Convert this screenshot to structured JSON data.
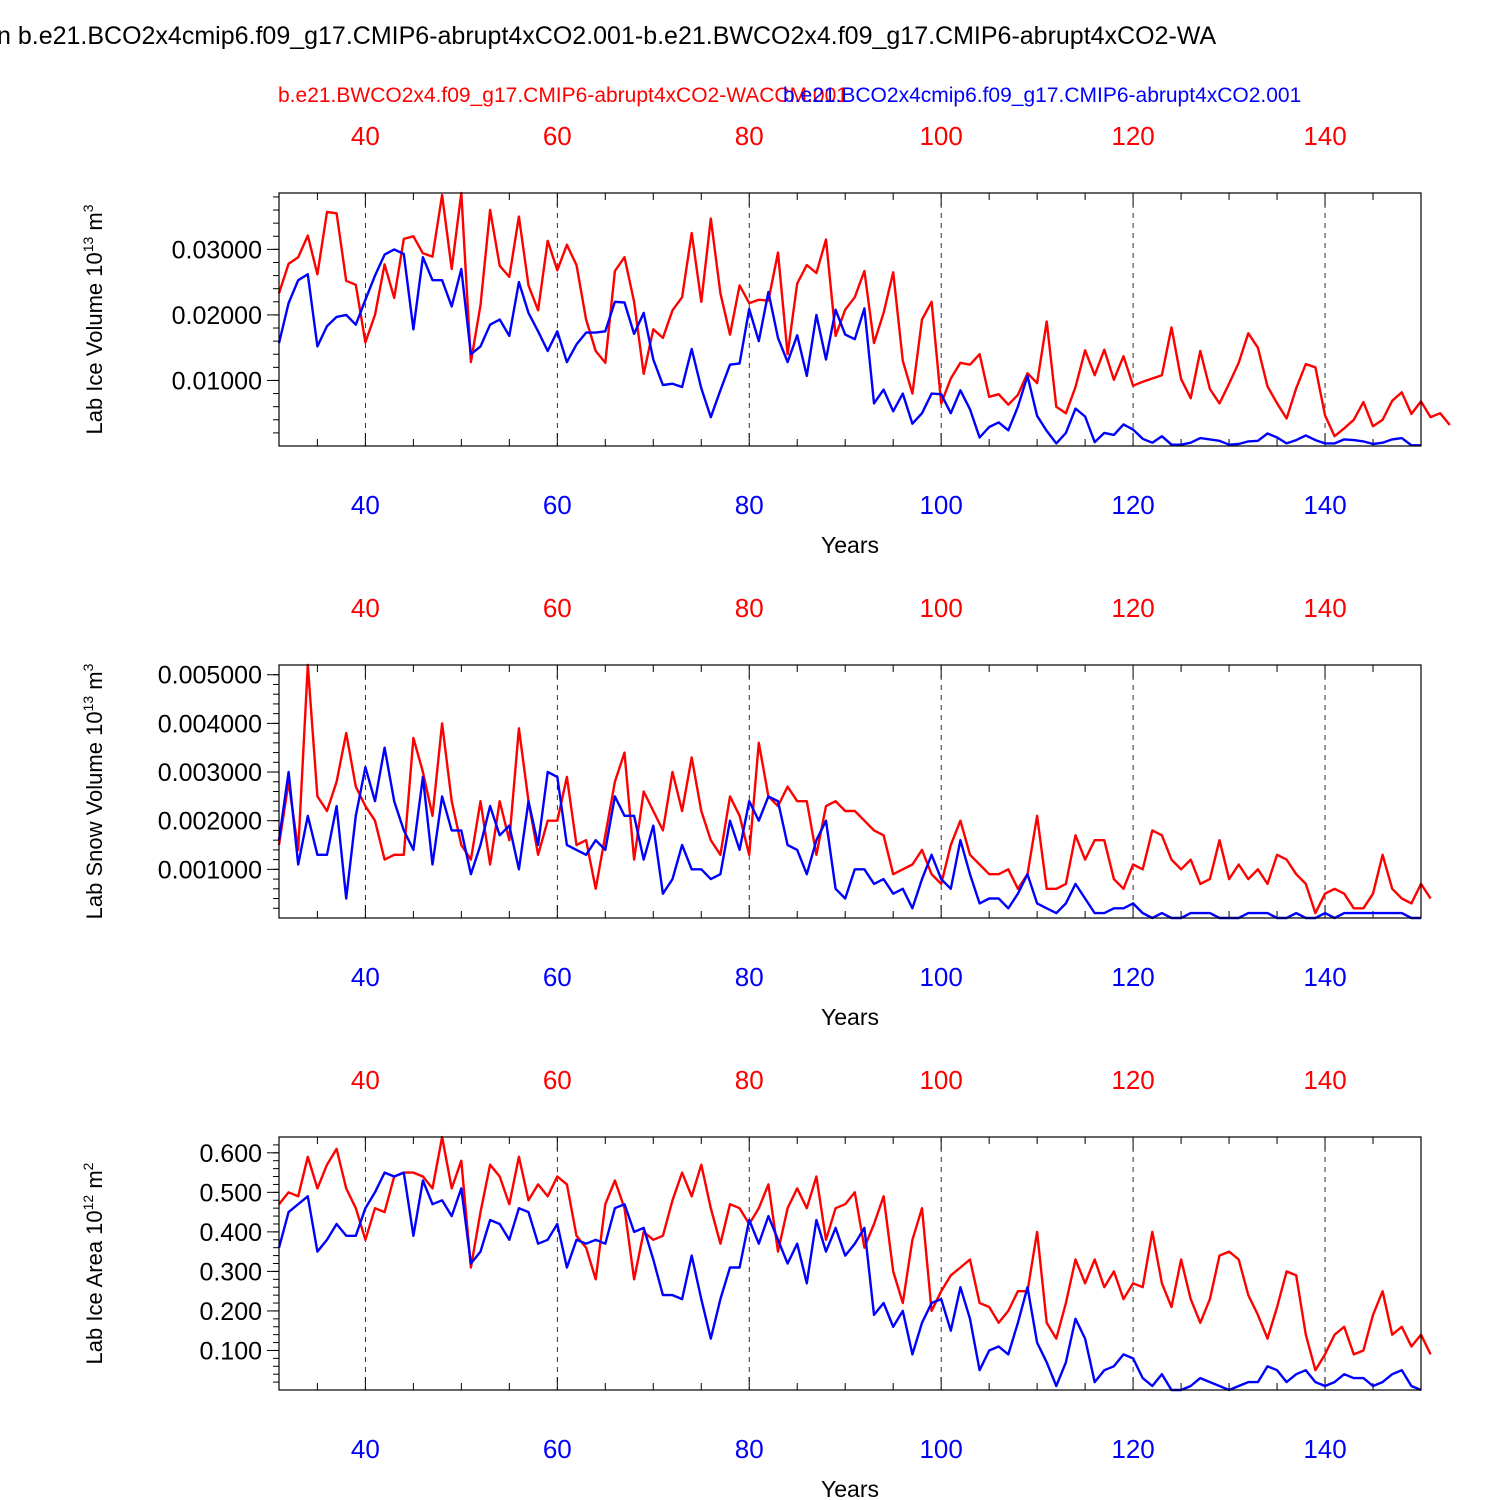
{
  "page_title": "n b.e21.BCO2x4cmip6.f09_g17.CMIP6-abrupt4xCO2.001-b.e21.BWCO2x4.f09_g17.CMIP6-abrupt4xCO2-WA",
  "legend": {
    "red_label": "b.e21.BWCO2x4.f09_g17.CMIP6-abrupt4xCO2-WACCM.001",
    "blue_label": "b.e21.BCO2x4cmip6.f09_g17.CMIP6-abrupt4xCO2.001"
  },
  "colors": {
    "red": "#ff0000",
    "blue": "#0000ff",
    "axis": "#000000"
  },
  "chart_data": [
    {
      "type": "line",
      "title": "",
      "ylabel": "Lab Ice Volume",
      "ylabel_unit": "10",
      "ylabel_exp": "13",
      "ylabel_unit_tail": " m",
      "ylabel_unit_exp": "3",
      "xlabel": "Years",
      "xlim": [
        31,
        150
      ],
      "ylim": [
        0,
        0.0386
      ],
      "yticks": [
        0.01,
        0.02,
        0.03
      ],
      "ytick_labels": [
        "0.01000",
        "0.02000",
        "0.03000"
      ],
      "ymin_step": 0.002,
      "xticks": [
        40,
        60,
        80,
        100,
        120,
        140
      ],
      "xtick_labels": [
        "40",
        "60",
        "80",
        "100",
        "120",
        "140"
      ],
      "x_start": 31,
      "series": [
        {
          "name": "b.e21.BWCO2x4.f09_g17.CMIP6-abrupt4xCO2-WACCM.001",
          "color": "red",
          "values": [
            0.0233,
            0.0278,
            0.0288,
            0.0321,
            0.0262,
            0.0357,
            0.0355,
            0.0252,
            0.0246,
            0.0158,
            0.02,
            0.0277,
            0.0226,
            0.0316,
            0.032,
            0.0294,
            0.0289,
            0.0383,
            0.027,
            0.0386,
            0.0128,
            0.0215,
            0.036,
            0.0275,
            0.0258,
            0.035,
            0.0245,
            0.0207,
            0.0313,
            0.0268,
            0.0307,
            0.0276,
            0.0193,
            0.0145,
            0.0127,
            0.0267,
            0.0288,
            0.022,
            0.011,
            0.0178,
            0.0165,
            0.0207,
            0.0227,
            0.0325,
            0.022,
            0.0347,
            0.0233,
            0.017,
            0.0245,
            0.0218,
            0.0223,
            0.0222,
            0.0295,
            0.014,
            0.0248,
            0.0276,
            0.0264,
            0.0315,
            0.0168,
            0.0208,
            0.0227,
            0.0267,
            0.0157,
            0.0203,
            0.0265,
            0.013,
            0.008,
            0.0193,
            0.022,
            0.0065,
            0.0103,
            0.0127,
            0.0124,
            0.014,
            0.0075,
            0.0079,
            0.0063,
            0.0078,
            0.0111,
            0.0096,
            0.019,
            0.006,
            0.005,
            0.009,
            0.0146,
            0.0108,
            0.0147,
            0.0101,
            0.0137,
            0.0092,
            0.0098,
            0.0103,
            0.0108,
            0.0181,
            0.0102,
            0.0073,
            0.0145,
            0.0087,
            0.0065,
            0.0095,
            0.0127,
            0.0172,
            0.015,
            0.0091,
            0.0065,
            0.0042,
            0.0088,
            0.0125,
            0.012,
            0.0047,
            0.0015,
            0.0027,
            0.004,
            0.0067,
            0.003,
            0.004,
            0.0069,
            0.0082,
            0.0049,
            0.0068,
            0.0044,
            0.005,
            0.0032
          ]
        },
        {
          "name": "b.e21.BCO2x4cmip6.f09_g17.CMIP6-abrupt4xCO2.001",
          "color": "blue",
          "values": [
            0.0157,
            0.0218,
            0.0253,
            0.0262,
            0.0152,
            0.0183,
            0.0197,
            0.02,
            0.0185,
            0.0223,
            0.026,
            0.0292,
            0.03,
            0.0293,
            0.0178,
            0.0288,
            0.0253,
            0.0253,
            0.0213,
            0.027,
            0.014,
            0.0152,
            0.0185,
            0.0193,
            0.0168,
            0.025,
            0.0203,
            0.0175,
            0.0145,
            0.0175,
            0.0128,
            0.0155,
            0.0173,
            0.0173,
            0.0175,
            0.022,
            0.0219,
            0.0171,
            0.0203,
            0.0132,
            0.0093,
            0.0095,
            0.009,
            0.0148,
            0.0088,
            0.0044,
            0.0085,
            0.0124,
            0.0126,
            0.0209,
            0.016,
            0.0235,
            0.0165,
            0.0128,
            0.0169,
            0.0107,
            0.02,
            0.0132,
            0.0208,
            0.017,
            0.0163,
            0.021,
            0.0065,
            0.0086,
            0.0053,
            0.008,
            0.0034,
            0.005,
            0.008,
            0.0079,
            0.005,
            0.0085,
            0.0056,
            0.0013,
            0.0029,
            0.0036,
            0.0024,
            0.006,
            0.0107,
            0.0046,
            0.0023,
            0.0004,
            0.002,
            0.0057,
            0.0045,
            0.0006,
            0.002,
            0.0017,
            0.0033,
            0.0025,
            0.0011,
            0.0005,
            0.0015,
            0.0002,
            0.0002,
            0.0005,
            0.0012,
            0.001,
            0.0008,
            0.0002,
            0.0003,
            0.0007,
            0.0008,
            0.0019,
            0.0013,
            0.0004,
            0.0009,
            0.0016,
            0.0009,
            0.0004,
            0.0004,
            0.001,
            0.0009,
            0.0007,
            0.0003,
            0.0005,
            0.001,
            0.0012,
            0.0001,
            0.0001
          ]
        }
      ]
    },
    {
      "type": "line",
      "title": "",
      "ylabel": "Lab Snow Volume",
      "ylabel_unit": "10",
      "ylabel_exp": "13",
      "ylabel_unit_tail": " m",
      "ylabel_unit_exp": "3",
      "xlabel": "Years",
      "xlim": [
        31,
        150
      ],
      "ylim": [
        0,
        0.0052
      ],
      "yticks": [
        0.001,
        0.002,
        0.003,
        0.004,
        0.005
      ],
      "ytick_labels": [
        "0.001000",
        "0.002000",
        "0.003000",
        "0.004000",
        "0.005000"
      ],
      "ymin_step": 0.0002,
      "xticks": [
        40,
        60,
        80,
        100,
        120,
        140
      ],
      "xtick_labels": [
        "40",
        "60",
        "80",
        "100",
        "120",
        "140"
      ],
      "x_start": 31,
      "series": [
        {
          "name": "b.e21.BWCO2x4.f09_g17.CMIP6-abrupt4xCO2-WACCM.001",
          "color": "red",
          "values": [
            0.0015,
            0.0028,
            0.0014,
            0.0052,
            0.0025,
            0.0022,
            0.0028,
            0.0038,
            0.0027,
            0.0023,
            0.002,
            0.0012,
            0.0013,
            0.0013,
            0.0037,
            0.003,
            0.0021,
            0.004,
            0.0024,
            0.0015,
            0.0012,
            0.0024,
            0.0011,
            0.0024,
            0.0016,
            0.0039,
            0.0024,
            0.0013,
            0.002,
            0.002,
            0.0029,
            0.0015,
            0.0016,
            0.0006,
            0.0017,
            0.0028,
            0.0034,
            0.0012,
            0.0026,
            0.0022,
            0.0018,
            0.003,
            0.0022,
            0.0033,
            0.0022,
            0.0016,
            0.0013,
            0.0025,
            0.0021,
            0.0013,
            0.0036,
            0.0025,
            0.0023,
            0.0027,
            0.0024,
            0.0024,
            0.0013,
            0.0023,
            0.0024,
            0.0022,
            0.0022,
            0.002,
            0.0018,
            0.0017,
            0.0009,
            0.001,
            0.0011,
            0.0014,
            0.0009,
            0.0007,
            0.0015,
            0.002,
            0.0013,
            0.0011,
            0.0009,
            0.0009,
            0.001,
            0.0006,
            0.0009,
            0.0021,
            0.0006,
            0.0006,
            0.0007,
            0.0017,
            0.0012,
            0.0016,
            0.0016,
            0.0008,
            0.0006,
            0.0011,
            0.001,
            0.0018,
            0.0017,
            0.0012,
            0.001,
            0.0012,
            0.0007,
            0.0008,
            0.0016,
            0.0008,
            0.0011,
            0.0008,
            0.001,
            0.0007,
            0.0013,
            0.0012,
            0.0009,
            0.0007,
            0.0001,
            0.0005,
            0.0006,
            0.0005,
            0.0002,
            0.0002,
            0.0005,
            0.0013,
            0.0006,
            0.0004,
            0.0003,
            0.0007,
            0.0004
          ]
        },
        {
          "name": "b.e21.BCO2x4cmip6.f09_g17.CMIP6-abrupt4xCO2.001",
          "color": "blue",
          "values": [
            0.0016,
            0.003,
            0.0011,
            0.0021,
            0.0013,
            0.0013,
            0.0023,
            0.0004,
            0.0021,
            0.0031,
            0.0024,
            0.0035,
            0.0024,
            0.0018,
            0.0014,
            0.0029,
            0.0011,
            0.0025,
            0.0018,
            0.0018,
            0.0009,
            0.0015,
            0.0023,
            0.0017,
            0.0019,
            0.001,
            0.0024,
            0.0015,
            0.003,
            0.0029,
            0.0015,
            0.0014,
            0.0013,
            0.0016,
            0.0014,
            0.0025,
            0.0021,
            0.0021,
            0.0012,
            0.0019,
            0.0005,
            0.0008,
            0.0015,
            0.001,
            0.001,
            0.0008,
            0.0009,
            0.002,
            0.0014,
            0.0024,
            0.002,
            0.0025,
            0.0024,
            0.0015,
            0.0014,
            0.0009,
            0.0016,
            0.002,
            0.0006,
            0.0004,
            0.001,
            0.001,
            0.0007,
            0.0008,
            0.0005,
            0.0006,
            0.0002,
            0.0008,
            0.0013,
            0.0008,
            0.0006,
            0.0016,
            0.0009,
            0.0003,
            0.0004,
            0.0004,
            0.0002,
            0.0005,
            0.0009,
            0.0003,
            0.0002,
            0.0001,
            0.0003,
            0.0007,
            0.0004,
            0.0001,
            0.0001,
            0.0002,
            0.0002,
            0.0003,
            0.0001,
            0.0,
            0.0001,
            0.0,
            0.0,
            0.0001,
            0.0001,
            0.0001,
            0.0,
            0.0,
            0.0,
            0.0001,
            0.0001,
            0.0001,
            0.0,
            0.0,
            0.0001,
            0.0,
            0.0,
            0.0001,
            0.0,
            0.0001,
            0.0001,
            0.0001,
            0.0001,
            0.0001,
            0.0001,
            0.0001,
            0.0,
            0.0
          ]
        }
      ]
    },
    {
      "type": "line",
      "title": "",
      "ylabel": "Lab Ice Area",
      "ylabel_unit": "10",
      "ylabel_exp": "12",
      "ylabel_unit_tail": " m",
      "ylabel_unit_exp": "2",
      "xlabel": "Years",
      "xlim": [
        31,
        150
      ],
      "ylim": [
        0,
        0.64
      ],
      "yticks": [
        0.1,
        0.2,
        0.3,
        0.4,
        0.5,
        0.6
      ],
      "ytick_labels": [
        "0.100",
        "0.200",
        "0.300",
        "0.400",
        "0.500",
        "0.600"
      ],
      "ymin_step": 0.02,
      "xticks": [
        40,
        60,
        80,
        100,
        120,
        140
      ],
      "xtick_labels": [
        "40",
        "60",
        "80",
        "100",
        "120",
        "140"
      ],
      "x_start": 31,
      "series": [
        {
          "name": "b.e21.BWCO2x4.f09_g17.CMIP6-abrupt4xCO2-WACCM.001",
          "color": "red",
          "values": [
            0.47,
            0.5,
            0.49,
            0.59,
            0.51,
            0.57,
            0.61,
            0.51,
            0.46,
            0.38,
            0.46,
            0.45,
            0.54,
            0.55,
            0.55,
            0.54,
            0.51,
            0.64,
            0.51,
            0.58,
            0.31,
            0.45,
            0.57,
            0.54,
            0.47,
            0.59,
            0.48,
            0.52,
            0.49,
            0.54,
            0.52,
            0.39,
            0.36,
            0.28,
            0.47,
            0.53,
            0.46,
            0.28,
            0.4,
            0.38,
            0.39,
            0.48,
            0.55,
            0.49,
            0.57,
            0.46,
            0.37,
            0.47,
            0.46,
            0.42,
            0.46,
            0.52,
            0.35,
            0.46,
            0.51,
            0.46,
            0.54,
            0.38,
            0.46,
            0.47,
            0.5,
            0.36,
            0.42,
            0.49,
            0.3,
            0.22,
            0.38,
            0.46,
            0.2,
            0.25,
            0.29,
            0.31,
            0.33,
            0.22,
            0.21,
            0.17,
            0.2,
            0.25,
            0.25,
            0.4,
            0.17,
            0.13,
            0.22,
            0.33,
            0.27,
            0.33,
            0.26,
            0.3,
            0.23,
            0.27,
            0.26,
            0.4,
            0.27,
            0.21,
            0.33,
            0.23,
            0.17,
            0.23,
            0.34,
            0.35,
            0.33,
            0.24,
            0.19,
            0.13,
            0.21,
            0.3,
            0.29,
            0.14,
            0.05,
            0.09,
            0.14,
            0.16,
            0.09,
            0.1,
            0.19,
            0.25,
            0.14,
            0.16,
            0.11,
            0.14,
            0.09
          ]
        },
        {
          "name": "b.e21.BCO2x4cmip6.f09_g17.CMIP6-abrupt4xCO2.001",
          "color": "blue",
          "values": [
            0.36,
            0.45,
            0.47,
            0.49,
            0.35,
            0.38,
            0.42,
            0.39,
            0.39,
            0.46,
            0.5,
            0.55,
            0.54,
            0.55,
            0.39,
            0.53,
            0.47,
            0.48,
            0.44,
            0.51,
            0.32,
            0.35,
            0.43,
            0.42,
            0.38,
            0.46,
            0.45,
            0.37,
            0.38,
            0.42,
            0.31,
            0.38,
            0.37,
            0.38,
            0.37,
            0.46,
            0.47,
            0.4,
            0.41,
            0.33,
            0.24,
            0.24,
            0.23,
            0.34,
            0.23,
            0.13,
            0.23,
            0.31,
            0.31,
            0.43,
            0.37,
            0.44,
            0.38,
            0.32,
            0.37,
            0.27,
            0.43,
            0.35,
            0.41,
            0.34,
            0.37,
            0.41,
            0.19,
            0.22,
            0.16,
            0.2,
            0.09,
            0.17,
            0.22,
            0.23,
            0.15,
            0.26,
            0.18,
            0.05,
            0.1,
            0.11,
            0.09,
            0.17,
            0.26,
            0.12,
            0.07,
            0.01,
            0.07,
            0.18,
            0.13,
            0.02,
            0.05,
            0.06,
            0.09,
            0.08,
            0.03,
            0.01,
            0.04,
            0.0,
            0.0,
            0.01,
            0.03,
            0.02,
            0.01,
            0.0,
            0.01,
            0.02,
            0.02,
            0.06,
            0.05,
            0.02,
            0.04,
            0.05,
            0.02,
            0.01,
            0.02,
            0.04,
            0.03,
            0.03,
            0.01,
            0.02,
            0.04,
            0.05,
            0.01,
            0.0
          ]
        }
      ]
    }
  ]
}
